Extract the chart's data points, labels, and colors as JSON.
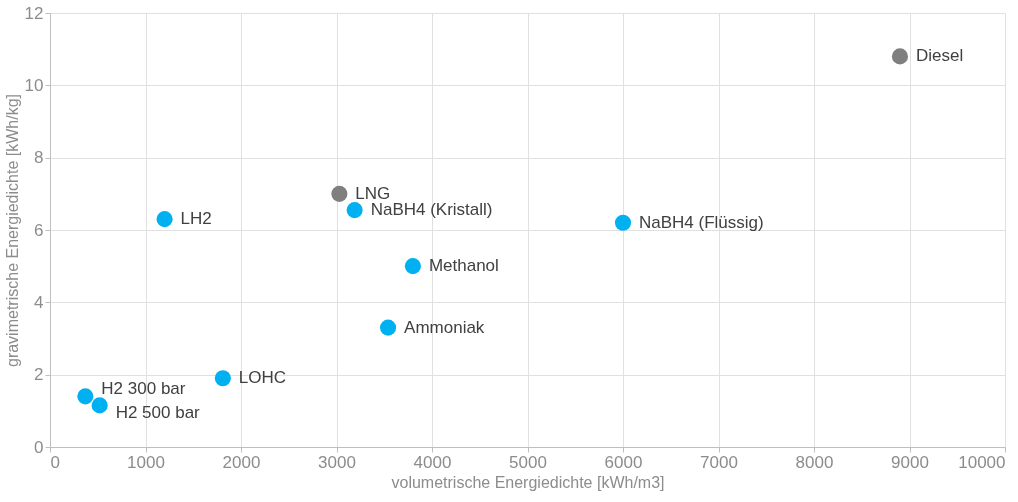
{
  "chart_data": {
    "type": "scatter",
    "xlabel": "volumetrische Energiedichte [kWh/m3]",
    "ylabel": "gravimetrische Energiedichte [kWh/kg]",
    "x": [
      8900,
      3030,
      3190,
      6000,
      1200,
      3800,
      3540,
      1810,
      370,
      520
    ],
    "values": [
      10.8,
      7.0,
      6.55,
      6.2,
      6.3,
      5.0,
      3.3,
      1.9,
      1.4,
      1.15
    ],
    "colors": [
      "#7f7f7f",
      "#7f7f7f",
      "#00b0f0",
      "#00b0f0",
      "#00b0f0",
      "#00b0f0",
      "#00b0f0",
      "#00b0f0",
      "#00b0f0",
      "#00b0f0"
    ],
    "annotations": [
      {
        "text": "Diesel",
        "x": 8900,
        "y": 10.8
      },
      {
        "text": "LNG",
        "x": 3030,
        "y": 7.0
      },
      {
        "text": "NaBH4 (Kristall)",
        "x": 3190,
        "y": 6.55
      },
      {
        "text": "NaBH4 (Flüssig)",
        "x": 6000,
        "y": 6.2
      },
      {
        "text": "LH2",
        "x": 1200,
        "y": 6.3
      },
      {
        "text": "Methanol",
        "x": 3800,
        "y": 5.0
      },
      {
        "text": "Ammoniak",
        "x": 3540,
        "y": 3.3
      },
      {
        "text": "LOHC",
        "x": 1810,
        "y": 1.9
      },
      {
        "text": "H2 300 bar",
        "x": 370,
        "y": 1.4
      },
      {
        "text": "H2 500 bar",
        "x": 520,
        "y": 1.15
      }
    ],
    "xlim": [
      0,
      10000
    ],
    "xticks": [
      0,
      1000,
      2000,
      3000,
      4000,
      5000,
      6000,
      7000,
      8000,
      9000,
      10000
    ],
    "ylim": [
      0,
      12
    ],
    "yticks": [
      0,
      2,
      4,
      6,
      8,
      10,
      12
    ],
    "grid": true,
    "marker": "circle"
  }
}
